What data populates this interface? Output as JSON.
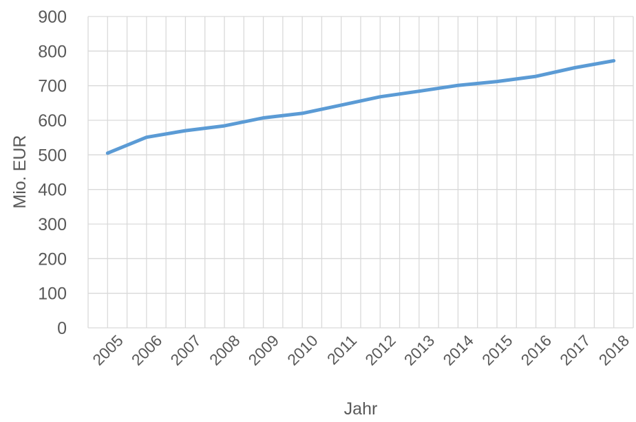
{
  "chart_data": {
    "type": "line",
    "title": "",
    "xlabel": "Jahr",
    "ylabel": "Mio. EUR",
    "categories": [
      "2005",
      "2006",
      "2007",
      "2008",
      "2009",
      "2010",
      "2011",
      "2012",
      "2013",
      "2014",
      "2015",
      "2016",
      "2017",
      "2018"
    ],
    "series": [
      {
        "values": [
          505,
          551,
          570,
          584,
          607,
          620,
          644,
          668,
          684,
          701,
          712,
          727,
          752,
          772
        ]
      }
    ],
    "ylim": [
      0,
      900
    ],
    "yticks": [
      0,
      100,
      200,
      300,
      400,
      500,
      600,
      700,
      800,
      900
    ],
    "grid": true,
    "legend": "none",
    "colors": {
      "line": "#5b9bd5",
      "grid": "#d9d9d9",
      "text": "#595959"
    }
  }
}
